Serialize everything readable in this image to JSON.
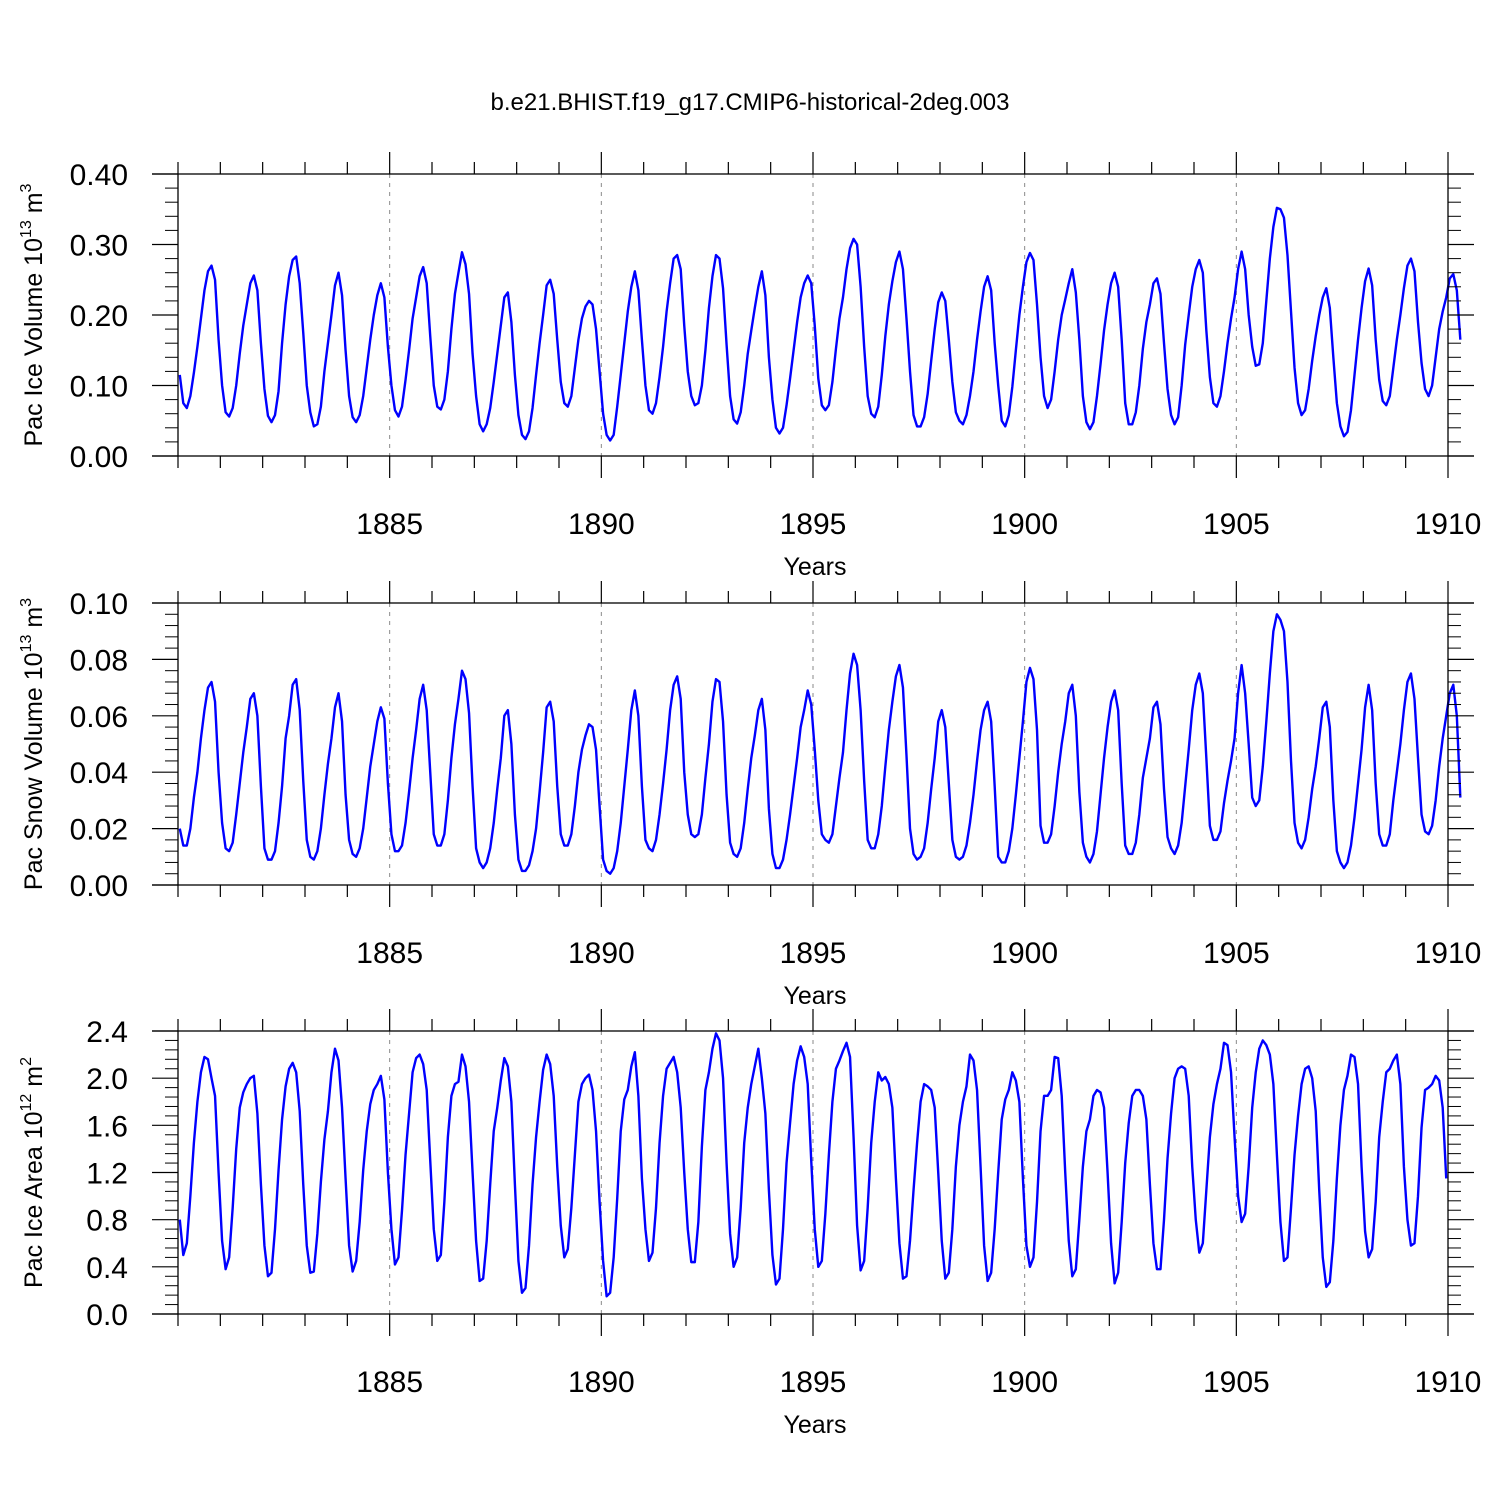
{
  "figure": {
    "title": "b.e21.BHIST.f19_g17.CMIP6-historical-2deg.003"
  },
  "chart_data": [
    {
      "type": "line",
      "ylabel_main": "Pac Ice Volume 10",
      "ylabel_exp": "13",
      "ylabel_unit": " m",
      "ylabel_unit_exp": "3",
      "xlabel": "Years",
      "xlim": [
        1880.0,
        1910.0
      ],
      "ylim": [
        0.0,
        0.4
      ],
      "yticks": [
        "0.00",
        "0.10",
        "0.20",
        "0.30",
        "0.40"
      ],
      "ytick_values": [
        0.0,
        0.1,
        0.2,
        0.3,
        0.4
      ],
      "xticks": [
        "1885",
        "1890",
        "1895",
        "1900",
        "1905",
        "1910"
      ],
      "xtick_values": [
        1885,
        1890,
        1895,
        1900,
        1905,
        1910
      ],
      "grid": "vertical dashed lines at major x ticks",
      "line_color": "#0000ff",
      "x_start": 1880.0417,
      "x_step": 0.083333,
      "values": [
        0.115,
        0.075,
        0.068,
        0.085,
        0.118,
        0.155,
        0.195,
        0.235,
        0.262,
        0.27,
        0.25,
        0.165,
        0.1,
        0.062,
        0.056,
        0.068,
        0.1,
        0.145,
        0.185,
        0.215,
        0.245,
        0.256,
        0.235,
        0.16,
        0.095,
        0.057,
        0.048,
        0.058,
        0.092,
        0.16,
        0.215,
        0.255,
        0.278,
        0.283,
        0.245,
        0.175,
        0.1,
        0.062,
        0.042,
        0.045,
        0.07,
        0.12,
        0.16,
        0.2,
        0.242,
        0.26,
        0.228,
        0.15,
        0.085,
        0.055,
        0.048,
        0.058,
        0.085,
        0.125,
        0.165,
        0.2,
        0.228,
        0.245,
        0.225,
        0.155,
        0.1,
        0.065,
        0.056,
        0.07,
        0.108,
        0.15,
        0.195,
        0.225,
        0.255,
        0.268,
        0.245,
        0.17,
        0.1,
        0.07,
        0.066,
        0.08,
        0.12,
        0.18,
        0.23,
        0.26,
        0.289,
        0.272,
        0.23,
        0.145,
        0.085,
        0.045,
        0.035,
        0.045,
        0.068,
        0.105,
        0.145,
        0.185,
        0.225,
        0.232,
        0.19,
        0.115,
        0.058,
        0.03,
        0.024,
        0.035,
        0.068,
        0.115,
        0.16,
        0.2,
        0.242,
        0.25,
        0.23,
        0.165,
        0.105,
        0.075,
        0.07,
        0.085,
        0.125,
        0.165,
        0.195,
        0.212,
        0.22,
        0.215,
        0.18,
        0.12,
        0.06,
        0.03,
        0.022,
        0.03,
        0.07,
        0.115,
        0.16,
        0.205,
        0.24,
        0.262,
        0.235,
        0.165,
        0.1,
        0.065,
        0.06,
        0.075,
        0.112,
        0.155,
        0.205,
        0.245,
        0.28,
        0.285,
        0.265,
        0.185,
        0.12,
        0.085,
        0.072,
        0.075,
        0.1,
        0.15,
        0.21,
        0.255,
        0.285,
        0.28,
        0.238,
        0.158,
        0.085,
        0.052,
        0.046,
        0.062,
        0.1,
        0.145,
        0.178,
        0.21,
        0.24,
        0.262,
        0.228,
        0.14,
        0.08,
        0.04,
        0.032,
        0.04,
        0.072,
        0.11,
        0.15,
        0.19,
        0.225,
        0.245,
        0.256,
        0.245,
        0.185,
        0.11,
        0.072,
        0.065,
        0.072,
        0.105,
        0.152,
        0.195,
        0.225,
        0.265,
        0.295,
        0.308,
        0.3,
        0.24,
        0.155,
        0.085,
        0.06,
        0.055,
        0.07,
        0.115,
        0.17,
        0.215,
        0.248,
        0.275,
        0.29,
        0.265,
        0.195,
        0.12,
        0.058,
        0.042,
        0.042,
        0.055,
        0.088,
        0.135,
        0.18,
        0.218,
        0.232,
        0.22,
        0.165,
        0.105,
        0.062,
        0.05,
        0.045,
        0.058,
        0.085,
        0.12,
        0.165,
        0.205,
        0.24,
        0.255,
        0.235,
        0.16,
        0.1,
        0.05,
        0.042,
        0.058,
        0.098,
        0.15,
        0.2,
        0.24,
        0.275,
        0.288,
        0.278,
        0.215,
        0.14,
        0.085,
        0.068,
        0.08,
        0.12,
        0.165,
        0.2,
        0.222,
        0.245,
        0.265,
        0.232,
        0.165,
        0.085,
        0.048,
        0.038,
        0.048,
        0.085,
        0.13,
        0.178,
        0.215,
        0.245,
        0.26,
        0.24,
        0.165,
        0.075,
        0.045,
        0.045,
        0.062,
        0.1,
        0.152,
        0.19,
        0.215,
        0.245,
        0.252,
        0.23,
        0.16,
        0.095,
        0.058,
        0.045,
        0.055,
        0.1,
        0.158,
        0.2,
        0.24,
        0.265,
        0.278,
        0.26,
        0.178,
        0.112,
        0.075,
        0.07,
        0.085,
        0.12,
        0.16,
        0.195,
        0.225,
        0.265,
        0.29,
        0.265,
        0.2,
        0.155,
        0.128,
        0.13,
        0.16,
        0.22,
        0.28,
        0.325,
        0.352,
        0.35,
        0.338,
        0.285,
        0.205,
        0.125,
        0.075,
        0.058,
        0.065,
        0.095,
        0.135,
        0.17,
        0.2,
        0.225,
        0.238,
        0.21,
        0.14,
        0.075,
        0.042,
        0.028,
        0.034,
        0.065,
        0.115,
        0.165,
        0.21,
        0.248,
        0.266,
        0.242,
        0.165,
        0.108,
        0.078,
        0.072,
        0.085,
        0.125,
        0.165,
        0.2,
        0.238,
        0.27,
        0.28,
        0.262,
        0.19,
        0.132,
        0.095,
        0.085,
        0.1,
        0.14,
        0.18,
        0.205,
        0.225,
        0.252,
        0.258,
        0.235,
        0.165
      ]
    },
    {
      "type": "line",
      "ylabel_main": "Pac Snow Volume 10",
      "ylabel_exp": "13",
      "ylabel_unit": " m",
      "ylabel_unit_exp": "3",
      "xlabel": "Years",
      "xlim": [
        1880.0,
        1910.0
      ],
      "ylim": [
        0.0,
        0.1
      ],
      "yticks": [
        "0.00",
        "0.02",
        "0.04",
        "0.06",
        "0.08",
        "0.10"
      ],
      "ytick_values": [
        0.0,
        0.02,
        0.04,
        0.06,
        0.08,
        0.1
      ],
      "xticks": [
        "1885",
        "1890",
        "1895",
        "1900",
        "1905",
        "1910"
      ],
      "xtick_values": [
        1885,
        1890,
        1895,
        1900,
        1905,
        1910
      ],
      "grid": "vertical dashed lines at major x ticks",
      "line_color": "#0000ff",
      "x_start": 1880.0417,
      "x_step": 0.083333,
      "values": [
        0.02,
        0.014,
        0.014,
        0.02,
        0.031,
        0.04,
        0.052,
        0.062,
        0.07,
        0.072,
        0.065,
        0.04,
        0.022,
        0.013,
        0.012,
        0.015,
        0.025,
        0.036,
        0.047,
        0.056,
        0.066,
        0.068,
        0.06,
        0.035,
        0.013,
        0.009,
        0.009,
        0.012,
        0.022,
        0.035,
        0.052,
        0.06,
        0.071,
        0.073,
        0.062,
        0.037,
        0.016,
        0.01,
        0.009,
        0.012,
        0.02,
        0.032,
        0.043,
        0.052,
        0.063,
        0.068,
        0.058,
        0.032,
        0.016,
        0.011,
        0.01,
        0.013,
        0.02,
        0.031,
        0.042,
        0.05,
        0.058,
        0.063,
        0.059,
        0.036,
        0.018,
        0.012,
        0.012,
        0.014,
        0.022,
        0.033,
        0.045,
        0.055,
        0.066,
        0.071,
        0.062,
        0.04,
        0.018,
        0.014,
        0.014,
        0.018,
        0.03,
        0.045,
        0.057,
        0.066,
        0.076,
        0.073,
        0.061,
        0.035,
        0.013,
        0.008,
        0.006,
        0.008,
        0.013,
        0.022,
        0.034,
        0.045,
        0.06,
        0.062,
        0.05,
        0.025,
        0.009,
        0.005,
        0.005,
        0.007,
        0.012,
        0.02,
        0.033,
        0.047,
        0.063,
        0.065,
        0.058,
        0.035,
        0.018,
        0.014,
        0.014,
        0.018,
        0.028,
        0.04,
        0.048,
        0.053,
        0.057,
        0.056,
        0.048,
        0.028,
        0.009,
        0.005,
        0.004,
        0.006,
        0.012,
        0.022,
        0.035,
        0.048,
        0.062,
        0.069,
        0.06,
        0.035,
        0.016,
        0.013,
        0.012,
        0.016,
        0.025,
        0.036,
        0.048,
        0.062,
        0.071,
        0.074,
        0.066,
        0.04,
        0.025,
        0.018,
        0.017,
        0.018,
        0.025,
        0.038,
        0.05,
        0.065,
        0.073,
        0.072,
        0.058,
        0.032,
        0.015,
        0.011,
        0.01,
        0.013,
        0.022,
        0.034,
        0.045,
        0.053,
        0.062,
        0.066,
        0.055,
        0.027,
        0.011,
        0.006,
        0.006,
        0.009,
        0.016,
        0.025,
        0.035,
        0.045,
        0.056,
        0.062,
        0.069,
        0.064,
        0.048,
        0.03,
        0.018,
        0.016,
        0.015,
        0.018,
        0.028,
        0.038,
        0.047,
        0.062,
        0.075,
        0.082,
        0.078,
        0.062,
        0.037,
        0.016,
        0.013,
        0.013,
        0.018,
        0.028,
        0.042,
        0.055,
        0.065,
        0.074,
        0.078,
        0.07,
        0.046,
        0.02,
        0.011,
        0.009,
        0.01,
        0.013,
        0.022,
        0.034,
        0.045,
        0.058,
        0.062,
        0.056,
        0.036,
        0.016,
        0.01,
        0.009,
        0.01,
        0.014,
        0.022,
        0.032,
        0.044,
        0.055,
        0.062,
        0.065,
        0.058,
        0.035,
        0.01,
        0.008,
        0.008,
        0.012,
        0.02,
        0.032,
        0.045,
        0.058,
        0.072,
        0.077,
        0.073,
        0.055,
        0.021,
        0.015,
        0.015,
        0.018,
        0.028,
        0.04,
        0.05,
        0.058,
        0.068,
        0.071,
        0.06,
        0.033,
        0.015,
        0.01,
        0.008,
        0.011,
        0.019,
        0.032,
        0.045,
        0.056,
        0.065,
        0.069,
        0.062,
        0.036,
        0.014,
        0.011,
        0.011,
        0.015,
        0.025,
        0.038,
        0.045,
        0.052,
        0.063,
        0.065,
        0.057,
        0.034,
        0.017,
        0.013,
        0.011,
        0.014,
        0.022,
        0.035,
        0.048,
        0.062,
        0.071,
        0.075,
        0.068,
        0.045,
        0.021,
        0.016,
        0.016,
        0.019,
        0.029,
        0.037,
        0.044,
        0.052,
        0.068,
        0.078,
        0.068,
        0.05,
        0.031,
        0.028,
        0.03,
        0.042,
        0.058,
        0.075,
        0.09,
        0.096,
        0.094,
        0.09,
        0.072,
        0.044,
        0.022,
        0.015,
        0.013,
        0.016,
        0.024,
        0.034,
        0.042,
        0.052,
        0.063,
        0.065,
        0.056,
        0.03,
        0.012,
        0.008,
        0.006,
        0.008,
        0.014,
        0.024,
        0.036,
        0.048,
        0.063,
        0.071,
        0.062,
        0.036,
        0.018,
        0.014,
        0.014,
        0.018,
        0.03,
        0.04,
        0.05,
        0.062,
        0.072,
        0.075,
        0.066,
        0.045,
        0.025,
        0.019,
        0.018,
        0.021,
        0.03,
        0.042,
        0.052,
        0.06,
        0.068,
        0.071,
        0.06,
        0.031
      ]
    },
    {
      "type": "line",
      "ylabel_main": "Pac Ice Area 10",
      "ylabel_exp": "12",
      "ylabel_unit": " m",
      "ylabel_unit_exp": "2",
      "xlabel": "Years",
      "xlim": [
        1880.0,
        1910.0
      ],
      "ylim": [
        0.0,
        2.4
      ],
      "yticks": [
        "0.0",
        "0.4",
        "0.8",
        "1.2",
        "1.6",
        "2.0",
        "2.4"
      ],
      "ytick_values": [
        0.0,
        0.4,
        0.8,
        1.2,
        1.6,
        2.0,
        2.4
      ],
      "xticks": [
        "1885",
        "1890",
        "1895",
        "1900",
        "1905",
        "1910"
      ],
      "xtick_values": [
        1885,
        1890,
        1895,
        1900,
        1905,
        1910
      ],
      "grid": "vertical dashed lines at major x ticks",
      "line_color": "#0000ff",
      "x_start": 1880.0417,
      "x_step": 0.083333,
      "values": [
        0.8,
        0.5,
        0.6,
        1.0,
        1.45,
        1.8,
        2.05,
        2.18,
        2.16,
        2.0,
        1.85,
        1.2,
        0.62,
        0.38,
        0.48,
        0.9,
        1.4,
        1.75,
        1.88,
        1.95,
        2.0,
        2.02,
        1.7,
        1.1,
        0.58,
        0.32,
        0.35,
        0.72,
        1.22,
        1.65,
        1.93,
        2.08,
        2.13,
        2.05,
        1.72,
        1.1,
        0.58,
        0.35,
        0.36,
        0.68,
        1.12,
        1.48,
        1.72,
        2.05,
        2.25,
        2.15,
        1.75,
        1.15,
        0.58,
        0.36,
        0.45,
        0.78,
        1.22,
        1.55,
        1.78,
        1.9,
        1.95,
        2.02,
        1.82,
        1.2,
        0.72,
        0.42,
        0.48,
        0.88,
        1.35,
        1.7,
        2.05,
        2.17,
        2.2,
        2.12,
        1.9,
        1.3,
        0.72,
        0.45,
        0.5,
        0.95,
        1.5,
        1.85,
        1.95,
        1.97,
        2.2,
        2.1,
        1.8,
        1.2,
        0.62,
        0.28,
        0.3,
        0.62,
        1.1,
        1.55,
        1.75,
        1.98,
        2.17,
        2.1,
        1.8,
        1.1,
        0.45,
        0.18,
        0.22,
        0.58,
        1.1,
        1.5,
        1.8,
        2.07,
        2.2,
        2.12,
        1.85,
        1.25,
        0.75,
        0.48,
        0.55,
        0.9,
        1.35,
        1.8,
        1.95,
        2.0,
        2.03,
        1.9,
        1.55,
        0.95,
        0.45,
        0.15,
        0.18,
        0.48,
        0.98,
        1.55,
        1.82,
        1.9,
        2.1,
        2.22,
        1.85,
        1.15,
        0.72,
        0.45,
        0.52,
        0.9,
        1.45,
        1.85,
        2.08,
        2.13,
        2.18,
        2.05,
        1.75,
        1.2,
        0.72,
        0.44,
        0.44,
        0.78,
        1.42,
        1.9,
        2.05,
        2.25,
        2.38,
        2.32,
        2.0,
        1.28,
        0.68,
        0.4,
        0.48,
        0.9,
        1.45,
        1.75,
        1.95,
        2.1,
        2.25,
        2.0,
        1.7,
        1.05,
        0.5,
        0.25,
        0.3,
        0.72,
        1.28,
        1.62,
        1.95,
        2.15,
        2.27,
        2.18,
        1.95,
        1.3,
        0.72,
        0.4,
        0.45,
        0.85,
        1.35,
        1.8,
        2.08,
        2.15,
        2.23,
        2.3,
        2.18,
        1.5,
        0.75,
        0.37,
        0.45,
        0.9,
        1.45,
        1.8,
        2.05,
        1.98,
        2.01,
        1.95,
        1.75,
        1.15,
        0.6,
        0.3,
        0.32,
        0.62,
        1.05,
        1.45,
        1.8,
        1.95,
        1.93,
        1.9,
        1.75,
        1.2,
        0.62,
        0.3,
        0.35,
        0.72,
        1.25,
        1.6,
        1.8,
        1.93,
        2.2,
        2.15,
        1.9,
        1.25,
        0.58,
        0.28,
        0.35,
        0.72,
        1.2,
        1.65,
        1.82,
        1.9,
        2.05,
        1.98,
        1.8,
        1.15,
        0.58,
        0.4,
        0.48,
        0.95,
        1.55,
        1.85,
        1.85,
        1.9,
        2.18,
        2.17,
        1.85,
        1.2,
        0.62,
        0.32,
        0.38,
        0.8,
        1.25,
        1.55,
        1.65,
        1.85,
        1.9,
        1.88,
        1.75,
        1.2,
        0.6,
        0.26,
        0.35,
        0.78,
        1.28,
        1.62,
        1.85,
        1.9,
        1.9,
        1.85,
        1.65,
        1.1,
        0.6,
        0.38,
        0.38,
        0.8,
        1.32,
        1.7,
        2.0,
        2.08,
        2.1,
        2.08,
        1.85,
        1.25,
        0.8,
        0.52,
        0.6,
        1.05,
        1.5,
        1.78,
        1.95,
        2.08,
        2.3,
        2.28,
        2.05,
        1.5,
        1.0,
        0.78,
        0.85,
        1.25,
        1.75,
        2.05,
        2.25,
        2.32,
        2.28,
        2.2,
        1.95,
        1.35,
        0.78,
        0.45,
        0.48,
        0.9,
        1.35,
        1.68,
        1.95,
        2.08,
        2.1,
        2.0,
        1.72,
        1.05,
        0.48,
        0.23,
        0.27,
        0.62,
        1.15,
        1.6,
        1.9,
        2.02,
        2.2,
        2.18,
        1.95,
        1.25,
        0.7,
        0.48,
        0.55,
        0.95,
        1.5,
        1.8,
        2.05,
        2.08,
        2.15,
        2.2,
        1.95,
        1.25,
        0.8,
        0.58,
        0.6,
        1.0,
        1.58,
        1.9,
        1.92,
        1.95,
        2.02,
        1.98,
        1.75,
        1.15
      ]
    }
  ]
}
